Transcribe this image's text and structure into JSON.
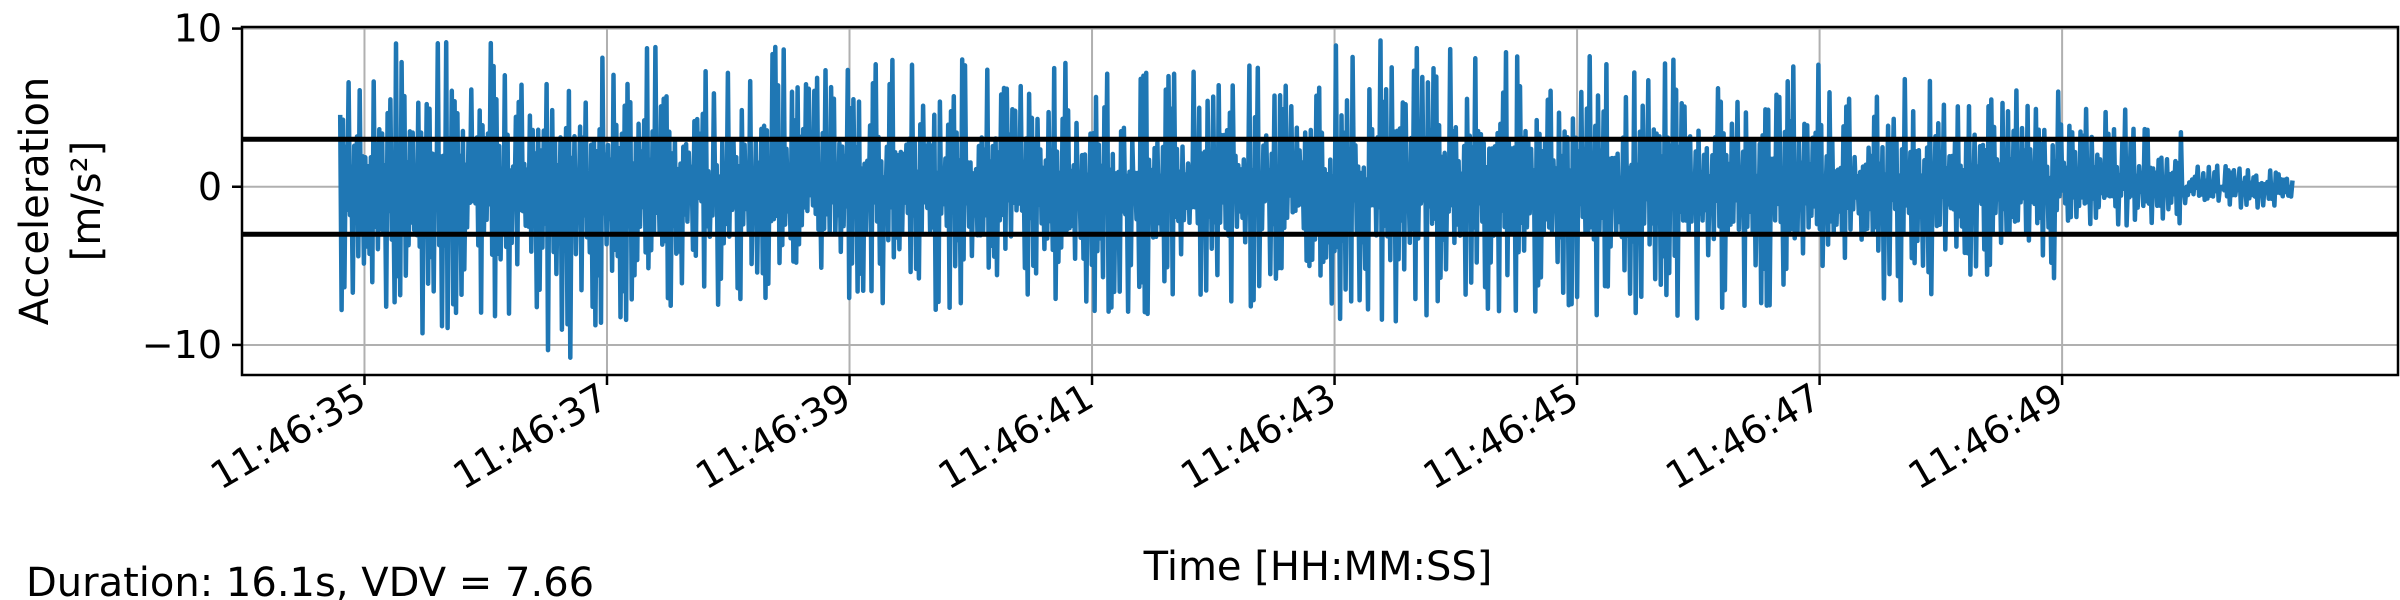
{
  "chart_data": {
    "type": "line",
    "title": "",
    "xlabel": "Time [HH:MM:SS]",
    "ylabel": "Acceleration",
    "ylabel_unit": "[m/s²]",
    "ylim": [
      -11.9,
      10.1
    ],
    "xlim": [
      "11:46:33.99",
      "11:46:51.77"
    ],
    "x_start": "11:46:34.80",
    "duration_s": 16.1,
    "grid": true,
    "y_ticks": [
      {
        "value": 10,
        "label": "10"
      },
      {
        "value": 0,
        "label": "0"
      },
      {
        "value": -10,
        "label": "−10"
      }
    ],
    "x_ticks": [
      {
        "value": "11:46:35",
        "label": "11:46:35"
      },
      {
        "value": "11:46:37",
        "label": "11:46:37"
      },
      {
        "value": "11:46:39",
        "label": "11:46:39"
      },
      {
        "value": "11:46:41",
        "label": "11:46:41"
      },
      {
        "value": "11:46:43",
        "label": "11:46:43"
      },
      {
        "value": "11:46:45",
        "label": "11:46:45"
      },
      {
        "value": "11:46:47",
        "label": "11:46:47"
      },
      {
        "value": "11:46:49",
        "label": "11:46:49"
      }
    ],
    "threshold_lines": [
      3.0,
      -3.0
    ],
    "series": [
      {
        "color": "#1f77b4",
        "y_extremes_by_second": [
          {
            "second": "11:46:34",
            "max": 7.6,
            "min": -7.9
          },
          {
            "second": "11:46:35",
            "max": 9.0,
            "min": -9.1
          },
          {
            "second": "11:46:36",
            "max": 8.9,
            "min": -10.6
          },
          {
            "second": "11:46:37",
            "max": 8.6,
            "min": -8.5
          },
          {
            "second": "11:46:38",
            "max": 8.6,
            "min": -7.3
          },
          {
            "second": "11:46:39",
            "max": 7.9,
            "min": -7.5
          },
          {
            "second": "11:46:40",
            "max": 7.6,
            "min": -7.0
          },
          {
            "second": "11:46:41",
            "max": 7.0,
            "min": -7.8
          },
          {
            "second": "11:46:42",
            "max": 7.8,
            "min": -7.4
          },
          {
            "second": "11:46:43",
            "max": 9.0,
            "min": -8.4
          },
          {
            "second": "11:46:44",
            "max": 8.3,
            "min": -7.7
          },
          {
            "second": "11:46:45",
            "max": 8.0,
            "min": -8.2
          },
          {
            "second": "11:46:46",
            "max": 7.9,
            "min": -7.5
          },
          {
            "second": "11:46:47",
            "max": 6.8,
            "min": -7.0
          },
          {
            "second": "11:46:48",
            "max": 6.0,
            "min": -5.6
          },
          {
            "second": "11:46:49",
            "max": 5.0,
            "min": -3.0
          },
          {
            "second": "11:46:50",
            "max": 1.2,
            "min": -1.2
          }
        ]
      }
    ]
  },
  "footer": {
    "summary": "Duration: 16.1s, VDV = 7.66"
  }
}
